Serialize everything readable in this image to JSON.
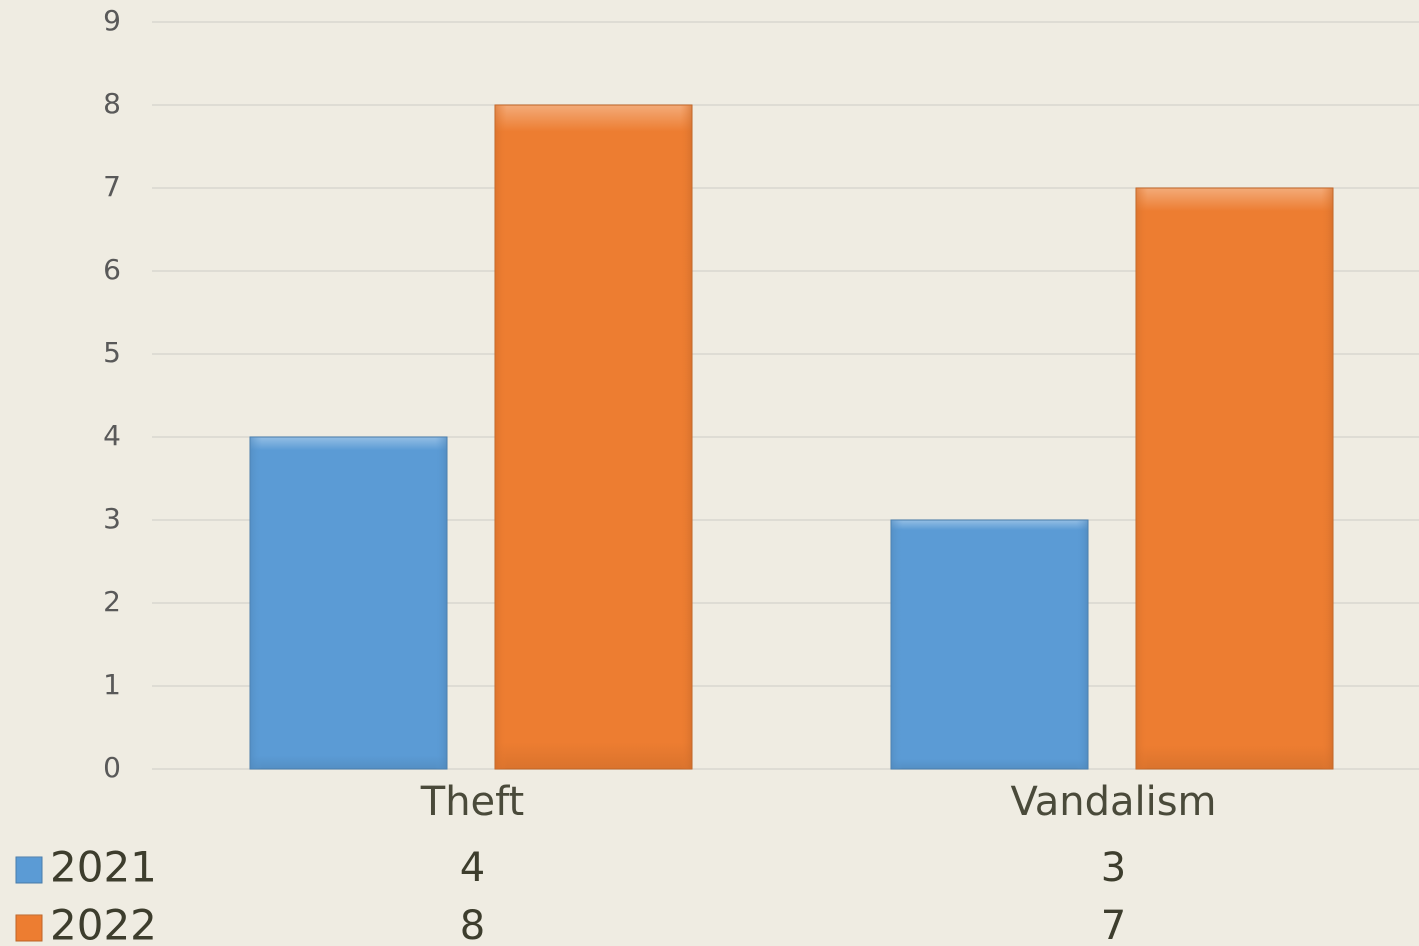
{
  "chart_data": {
    "type": "bar",
    "categories": [
      "Theft",
      "Vandalism"
    ],
    "series": [
      {
        "name": "2021",
        "color": "#5b9bd5",
        "values": [
          4,
          3
        ]
      },
      {
        "name": "2022",
        "color": "#ed7d31",
        "values": [
          8,
          7
        ]
      }
    ],
    "ylim": [
      0,
      9
    ],
    "yticks": [
      0,
      1,
      2,
      3,
      4,
      5,
      6,
      7,
      8,
      9
    ],
    "grid": true,
    "data_table": true
  }
}
